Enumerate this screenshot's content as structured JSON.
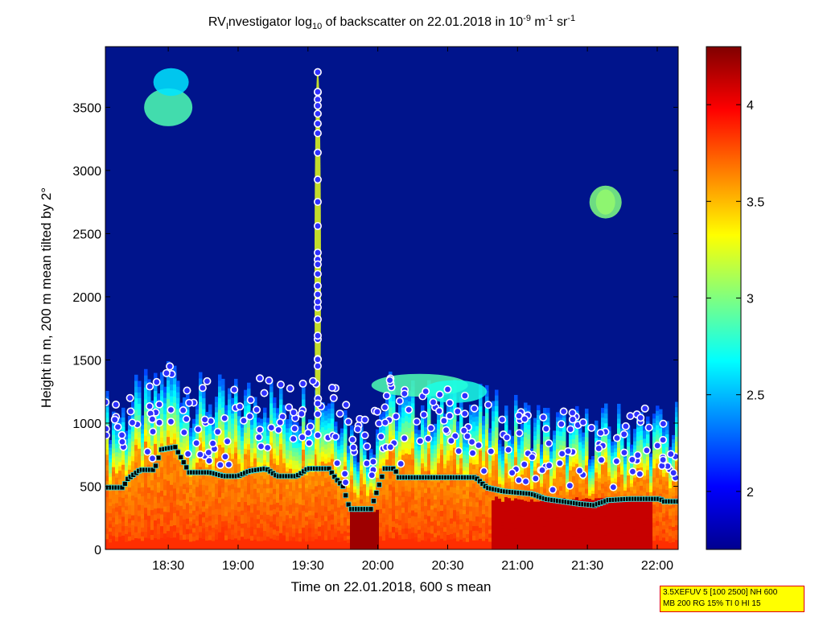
{
  "chart_data": {
    "type": "heatmap",
    "title": {
      "prefix": "RV",
      "sub1": "I",
      "mid": "nvestigator log",
      "sub2": "10",
      "after": " of backscatter on 22.01.2018 in 10",
      "sup1": "-9",
      "unit_m": " m",
      "sup2": "-1",
      "unit_sr": " sr",
      "sup3": "-1"
    },
    "xlabel": "Time on 22.01.2018, 600 s mean",
    "ylabel": "Height in m, 200 m mean tilted by 2°",
    "xlim_hours": [
      18.05,
      22.15
    ],
    "x_ticks": [
      {
        "h": 18.5,
        "label": "18:30"
      },
      {
        "h": 19.0,
        "label": "19:00"
      },
      {
        "h": 19.5,
        "label": "19:30"
      },
      {
        "h": 20.0,
        "label": "20:00"
      },
      {
        "h": 20.5,
        "label": "20:30"
      },
      {
        "h": 21.0,
        "label": "21:00"
      },
      {
        "h": 21.5,
        "label": "21:30"
      },
      {
        "h": 22.0,
        "label": "22:00"
      }
    ],
    "ylim": [
      0,
      3980
    ],
    "y_ticks": [
      0,
      500,
      1000,
      1500,
      2000,
      2500,
      3000,
      3500
    ],
    "colorbar": {
      "range": [
        1.7,
        4.3
      ],
      "ticks": [
        2,
        2.5,
        3,
        3.5,
        4
      ],
      "tick_labels": [
        "2",
        "2.5",
        "3",
        "3.5",
        "4"
      ],
      "colormap": "jet"
    },
    "boundary_layer_height": [
      [
        18.05,
        490
      ],
      [
        18.18,
        490
      ],
      [
        18.2,
        550
      ],
      [
        18.25,
        590
      ],
      [
        18.3,
        630
      ],
      [
        18.4,
        630
      ],
      [
        18.45,
        790
      ],
      [
        18.55,
        810
      ],
      [
        18.65,
        610
      ],
      [
        18.8,
        610
      ],
      [
        18.9,
        580
      ],
      [
        19.0,
        580
      ],
      [
        19.08,
        620
      ],
      [
        19.2,
        640
      ],
      [
        19.28,
        580
      ],
      [
        19.42,
        580
      ],
      [
        19.5,
        640
      ],
      [
        19.65,
        640
      ],
      [
        19.7,
        560
      ],
      [
        19.75,
        500
      ],
      [
        19.8,
        320
      ],
      [
        19.95,
        320
      ],
      [
        20.05,
        640
      ],
      [
        20.12,
        640
      ],
      [
        20.15,
        570
      ],
      [
        20.4,
        570
      ],
      [
        20.7,
        570
      ],
      [
        20.78,
        490
      ],
      [
        20.9,
        460
      ],
      [
        21.1,
        440
      ],
      [
        21.2,
        400
      ],
      [
        21.45,
        360
      ],
      [
        21.55,
        350
      ],
      [
        21.65,
        390
      ],
      [
        21.8,
        400
      ],
      [
        21.95,
        400
      ],
      [
        22.02,
        400
      ],
      [
        22.05,
        380
      ],
      [
        22.15,
        380
      ]
    ],
    "series": []
  },
  "info_box": {
    "line1": "3.5XEFUV 5 [100 2500] NH 600",
    "line2": "MB 200 RG 15% TI 0 HI 15"
  },
  "colors": {
    "background_cloud_free": "#00148c",
    "boundary_layer_marker": "#000000",
    "boundary_layer_edge": "#40e0e0",
    "cloud_marker_fill": "#3030ff",
    "cloud_marker_ring": "#ffffff",
    "cloud_marker_edge": "#ff1010",
    "info_box_bg": "#ffff00",
    "info_box_border": "#e00000"
  }
}
